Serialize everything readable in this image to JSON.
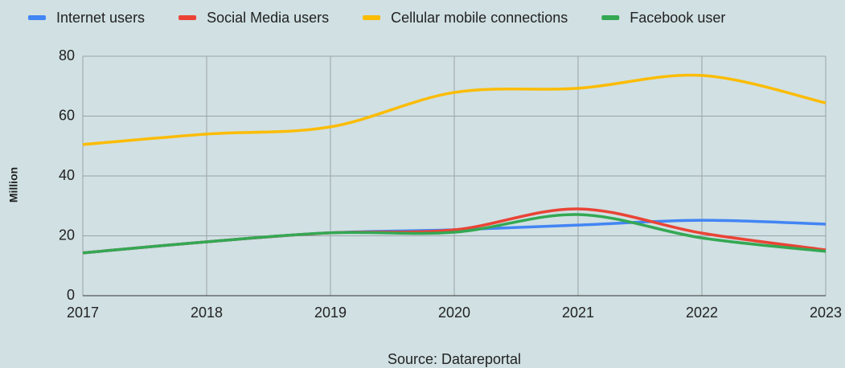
{
  "chart_data": {
    "type": "line",
    "y_label": "Million",
    "x_label": "Source: Datareportal",
    "x": [
      2017,
      2018,
      2019,
      2020,
      2021,
      2022,
      2023
    ],
    "xlim": [
      2017,
      2023
    ],
    "xticks": [
      2017,
      2018,
      2019,
      2020,
      2021,
      2022,
      2023
    ],
    "ylim": [
      0,
      80
    ],
    "yticks": [
      0,
      20,
      40,
      60,
      80
    ],
    "grid": true,
    "legend": "top",
    "smooth": true,
    "series": [
      {
        "name": "Internet users",
        "color": "#4285f4",
        "values": [
          14.3,
          18,
          21,
          22,
          23.6,
          25.2,
          23.9
        ]
      },
      {
        "name": "Social Media users",
        "color": "#ea4335",
        "values": [
          14.3,
          18,
          21,
          22,
          29,
          20.9,
          15.3
        ]
      },
      {
        "name": "Cellular mobile connections",
        "color": "#fbbc04",
        "values": [
          50.5,
          54,
          56.4,
          67.9,
          69.3,
          73.6,
          64.4
        ]
      },
      {
        "name": "Facebook user",
        "color": "#34a853",
        "values": [
          14.3,
          18,
          21,
          21.2,
          27.1,
          19.3,
          14.8
        ]
      }
    ]
  }
}
